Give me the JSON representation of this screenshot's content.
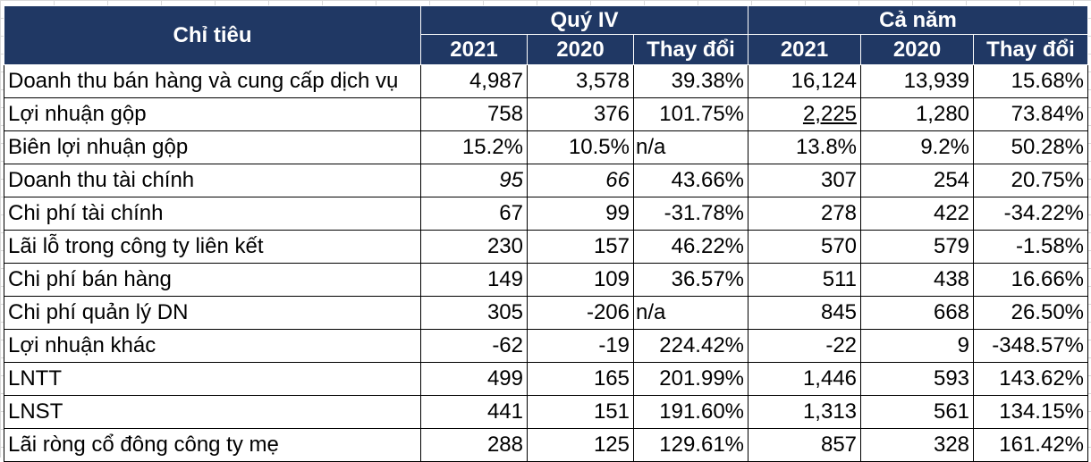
{
  "header": {
    "indicator": "Chỉ tiêu",
    "group_q4": "Quý IV",
    "group_year": "Cả năm",
    "q4_cols": [
      "2021",
      "2020",
      "Thay đổi"
    ],
    "year_cols": [
      "2021",
      "2020",
      "Thay đổi"
    ]
  },
  "rows": [
    {
      "label": "Doanh thu bán hàng và cung cấp dịch vụ",
      "q4_2021": "4,987",
      "q4_2020": "3,578",
      "q4_change": "39.38%",
      "y_2021": "16,124",
      "y_2020": "13,939",
      "y_change": "15.68%"
    },
    {
      "label": "Lợi nhuận gộp",
      "q4_2021": "758",
      "q4_2020": "376",
      "q4_change": "101.75%",
      "y_2021": "2,225",
      "y_2020": "1,280",
      "y_change": "73.84%"
    },
    {
      "label": "Biên lợi nhuận gộp",
      "q4_2021": "15.2%",
      "q4_2020": "10.5%",
      "q4_change": "n/a",
      "y_2021": "13.8%",
      "y_2020": "9.2%",
      "y_change": "50.28%"
    },
    {
      "label": "Doanh thu tài chính",
      "q4_2021": "95",
      "q4_2020": "66",
      "q4_change": "43.66%",
      "y_2021": "307",
      "y_2020": "254",
      "y_change": "20.75%"
    },
    {
      "label": "Chi phí tài chính",
      "q4_2021": "67",
      "q4_2020": "99",
      "q4_change": "-31.78%",
      "y_2021": "278",
      "y_2020": "422",
      "y_change": "-34.22%"
    },
    {
      "label": "Lãi lỗ trong công ty liên kết",
      "q4_2021": "230",
      "q4_2020": "157",
      "q4_change": "46.22%",
      "y_2021": "570",
      "y_2020": "579",
      "y_change": "-1.58%"
    },
    {
      "label": "Chi phí bán hàng",
      "q4_2021": "149",
      "q4_2020": "109",
      "q4_change": "36.57%",
      "y_2021": "511",
      "y_2020": "438",
      "y_change": "16.66%"
    },
    {
      "label": "Chi phí quản lý DN",
      "q4_2021": "305",
      "q4_2020": "-206",
      "q4_change": "n/a",
      "y_2021": "845",
      "y_2020": "668",
      "y_change": "26.50%"
    },
    {
      "label": "Lợi nhuận khác",
      "q4_2021": "-62",
      "q4_2020": "-19",
      "q4_change": "224.42%",
      "y_2021": "-22",
      "y_2020": "9",
      "y_change": "-348.57%"
    },
    {
      "label": "LNTT",
      "q4_2021": "499",
      "q4_2020": "165",
      "q4_change": "201.99%",
      "y_2021": "1,446",
      "y_2020": "593",
      "y_change": "143.62%"
    },
    {
      "label": "LNST",
      "q4_2021": "441",
      "q4_2020": "151",
      "q4_change": "191.60%",
      "y_2021": "1,313",
      "y_2020": "561",
      "y_change": "134.15%"
    },
    {
      "label": "Lãi ròng cổ đông công ty mẹ",
      "q4_2021": "288",
      "q4_2020": "125",
      "q4_change": "129.61%",
      "y_2021": "857",
      "y_2020": "328",
      "y_change": "161.42%"
    }
  ],
  "colors": {
    "header_bg": "#203864",
    "header_text": "#ffffff",
    "cell_border": "#000000",
    "flag_green": "#1e8a3c"
  }
}
